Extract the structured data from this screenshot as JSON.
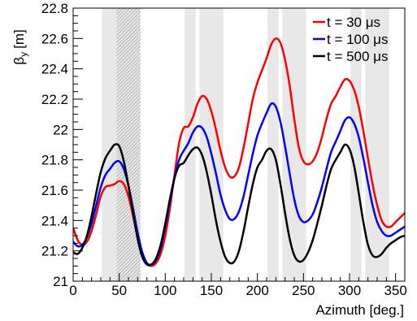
{
  "chart_data": {
    "type": "line",
    "xlabel": "Azimuth [deg.]",
    "ylabel": "β_y [m]",
    "ylabel_parts": {
      "symbol": "β",
      "subscript": "y",
      "unit": "[m]"
    },
    "xlim": [
      0,
      360
    ],
    "ylim": [
      21.0,
      22.8
    ],
    "x_ticks": [
      0,
      50,
      100,
      150,
      200,
      250,
      300,
      350
    ],
    "y_ticks": [
      21,
      21.2,
      21.4,
      21.6,
      21.8,
      22,
      22.2,
      22.4,
      22.6,
      22.8
    ],
    "y_tick_labels": [
      "21",
      "21.2",
      "21.4",
      "21.6",
      "21.8",
      "22",
      "22.2",
      "22.4",
      "22.6",
      "22.8"
    ],
    "legend_position": "top-right",
    "grid": false,
    "shaded_regions": [
      {
        "x": [
          31,
          47
        ],
        "style": "solid"
      },
      {
        "x": [
          47,
          73
        ],
        "style": "hatched"
      },
      {
        "x": [
          121,
          133
        ],
        "style": "solid"
      },
      {
        "x": [
          137,
          163
        ],
        "style": "solid"
      },
      {
        "x": [
          211,
          223
        ],
        "style": "solid"
      },
      {
        "x": [
          227,
          253
        ],
        "style": "solid"
      },
      {
        "x": [
          301,
          313
        ],
        "style": "solid"
      },
      {
        "x": [
          317,
          343
        ],
        "style": "solid"
      }
    ],
    "x": [
      0,
      5,
      10,
      15,
      20,
      25,
      30,
      35,
      40,
      45,
      50,
      55,
      60,
      65,
      70,
      75,
      80,
      85,
      90,
      95,
      100,
      105,
      110,
      115,
      120,
      125,
      130,
      135,
      140,
      145,
      150,
      155,
      160,
      165,
      170,
      175,
      180,
      185,
      190,
      195,
      200,
      205,
      210,
      215,
      220,
      225,
      230,
      235,
      240,
      245,
      250,
      255,
      260,
      265,
      270,
      275,
      280,
      285,
      290,
      295,
      300,
      305,
      310,
      315,
      320,
      325,
      330,
      335,
      340,
      345,
      350,
      355,
      360
    ],
    "series": [
      {
        "name": "t = 30 μs",
        "color": "#ff0000",
        "values": [
          21.35,
          21.27,
          21.24,
          21.26,
          21.33,
          21.44,
          21.56,
          21.62,
          21.63,
          21.64,
          21.66,
          21.64,
          21.56,
          21.43,
          21.29,
          21.19,
          21.12,
          21.1,
          21.12,
          21.18,
          21.3,
          21.48,
          21.7,
          21.91,
          22.01,
          22.02,
          22.08,
          22.17,
          22.22,
          22.2,
          22.12,
          22.0,
          21.86,
          21.75,
          21.69,
          21.69,
          21.75,
          21.88,
          22.04,
          22.2,
          22.31,
          22.39,
          22.47,
          22.56,
          22.6,
          22.57,
          22.46,
          22.29,
          22.07,
          21.88,
          21.79,
          21.77,
          21.79,
          21.85,
          21.95,
          22.07,
          22.17,
          22.22,
          22.28,
          22.33,
          22.32,
          22.26,
          22.15,
          21.99,
          21.81,
          21.64,
          21.5,
          21.4,
          21.36,
          21.36,
          21.39,
          21.42,
          21.45
        ]
      },
      {
        "name": "t = 100 μs",
        "color": "#0000ff",
        "values": [
          21.26,
          21.23,
          21.24,
          21.29,
          21.38,
          21.5,
          21.62,
          21.7,
          21.74,
          21.78,
          21.79,
          21.74,
          21.63,
          21.48,
          21.32,
          21.19,
          21.12,
          21.11,
          21.14,
          21.22,
          21.36,
          21.52,
          21.68,
          21.8,
          21.86,
          21.91,
          21.98,
          22.02,
          22.01,
          21.95,
          21.84,
          21.71,
          21.57,
          21.47,
          21.41,
          21.41,
          21.46,
          21.56,
          21.7,
          21.84,
          21.96,
          22.04,
          22.11,
          22.17,
          22.15,
          22.05,
          21.89,
          21.71,
          21.54,
          21.43,
          21.39,
          21.4,
          21.44,
          21.52,
          21.62,
          21.74,
          21.85,
          21.92,
          21.99,
          22.06,
          22.08,
          22.04,
          21.95,
          21.81,
          21.65,
          21.5,
          21.39,
          21.33,
          21.3,
          21.3,
          21.32,
          21.34,
          21.36
        ]
      },
      {
        "name": "t = 500 μs",
        "color": "#000000",
        "values": [
          21.19,
          21.18,
          21.22,
          21.3,
          21.43,
          21.58,
          21.72,
          21.81,
          21.86,
          21.9,
          21.89,
          21.79,
          21.63,
          21.45,
          21.28,
          21.16,
          21.11,
          21.11,
          21.15,
          21.24,
          21.38,
          21.54,
          21.68,
          21.76,
          21.78,
          21.83,
          21.87,
          21.88,
          21.83,
          21.72,
          21.57,
          21.4,
          21.26,
          21.16,
          21.12,
          21.13,
          21.2,
          21.33,
          21.49,
          21.64,
          21.75,
          21.8,
          21.86,
          21.87,
          21.8,
          21.64,
          21.45,
          21.28,
          21.17,
          21.13,
          21.14,
          21.19,
          21.27,
          21.38,
          21.5,
          21.63,
          21.74,
          21.8,
          21.85,
          21.9,
          21.87,
          21.76,
          21.58,
          21.39,
          21.24,
          21.17,
          21.16,
          21.18,
          21.22,
          21.25,
          21.27,
          21.29,
          21.3
        ]
      }
    ]
  }
}
